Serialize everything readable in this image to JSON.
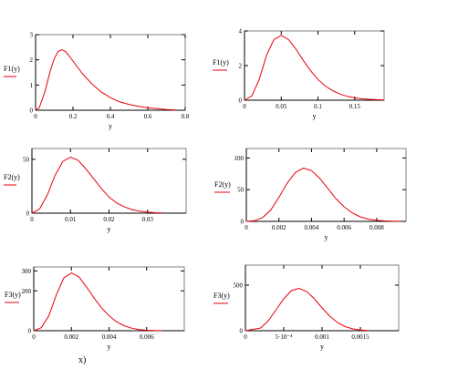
{
  "caption": "x)",
  "colors": {
    "curve": "#e8000b",
    "frame": "#808080"
  },
  "chart_data": [
    {
      "type": "line",
      "ylabel": "F1(y)",
      "xlabel": "y",
      "xlim": [
        0,
        0.8
      ],
      "ylim": [
        0,
        3
      ],
      "xticks": [
        "0",
        "0.2",
        "0.4",
        "0.6",
        "0.8"
      ],
      "xtickvals": [
        0,
        0.2,
        0.4,
        0.6,
        0.8
      ],
      "yticks": [
        "0",
        "1",
        "2",
        "3"
      ],
      "ytickvals": [
        0,
        1,
        2,
        3
      ],
      "series": [
        {
          "x": [
            0,
            0.02,
            0.05,
            0.08,
            0.1,
            0.12,
            0.14,
            0.16,
            0.18,
            0.2,
            0.25,
            0.3,
            0.35,
            0.4,
            0.45,
            0.5,
            0.55,
            0.6,
            0.65,
            0.7,
            0.75
          ],
          "y": [
            0,
            0.1,
            0.75,
            1.6,
            2.05,
            2.32,
            2.4,
            2.33,
            2.15,
            1.95,
            1.45,
            1.05,
            0.73,
            0.5,
            0.33,
            0.23,
            0.15,
            0.1,
            0.06,
            0.03,
            0.01
          ]
        }
      ]
    },
    {
      "type": "line",
      "ylabel": "F1(y)",
      "xlabel": "y",
      "xlim": [
        0,
        0.19
      ],
      "ylim": [
        0,
        4
      ],
      "xticks": [
        "0",
        "0.05",
        "0.1",
        "0.15"
      ],
      "xtickvals": [
        0,
        0.05,
        0.1,
        0.15
      ],
      "yticks": [
        "0",
        "2",
        "4"
      ],
      "ytickvals": [
        0,
        2,
        4
      ],
      "series": [
        {
          "x": [
            0,
            0.01,
            0.02,
            0.03,
            0.04,
            0.05,
            0.06,
            0.07,
            0.08,
            0.09,
            0.1,
            0.11,
            0.12,
            0.13,
            0.14,
            0.15,
            0.16,
            0.17,
            0.18,
            0.19
          ],
          "y": [
            0,
            0.25,
            1.2,
            2.6,
            3.5,
            3.75,
            3.5,
            2.95,
            2.3,
            1.7,
            1.2,
            0.82,
            0.55,
            0.35,
            0.22,
            0.14,
            0.08,
            0.05,
            0.03,
            0.02
          ]
        }
      ]
    },
    {
      "type": "line",
      "ylabel": "F2(y)",
      "xlabel": "y",
      "xlim": [
        0,
        0.04
      ],
      "ylim": [
        0,
        60
      ],
      "xticks": [
        "0",
        "0.01",
        "0.02",
        "0.03"
      ],
      "xtickvals": [
        0,
        0.01,
        0.02,
        0.03
      ],
      "yticks": [
        "0",
        "50"
      ],
      "ytickvals": [
        0,
        50
      ],
      "series": [
        {
          "x": [
            0,
            0.002,
            0.004,
            0.006,
            0.008,
            0.01,
            0.012,
            0.014,
            0.016,
            0.018,
            0.02,
            0.022,
            0.024,
            0.026,
            0.028,
            0.03,
            0.032,
            0.034
          ],
          "y": [
            0,
            4,
            17,
            35,
            48,
            52,
            49,
            41,
            32,
            23,
            15,
            9.5,
            5.8,
            3.3,
            1.8,
            0.9,
            0.4,
            0.2
          ]
        }
      ]
    },
    {
      "type": "line",
      "ylabel": "F2(y)",
      "xlabel": "y",
      "xlim": [
        0,
        0.0098
      ],
      "ylim": [
        0,
        115
      ],
      "xticks": [
        "0",
        "0.002",
        "0.004",
        "0.006",
        "0.008"
      ],
      "xtickvals": [
        0,
        0.002,
        0.004,
        0.006,
        0.008
      ],
      "yticks": [
        "0",
        "50",
        "100"
      ],
      "ytickvals": [
        0,
        50,
        100
      ],
      "series": [
        {
          "x": [
            0,
            0.0005,
            0.001,
            0.0015,
            0.002,
            0.0025,
            0.003,
            0.0035,
            0.004,
            0.0045,
            0.005,
            0.0055,
            0.006,
            0.0065,
            0.007,
            0.0075,
            0.008,
            0.0085,
            0.009,
            0.0095
          ],
          "y": [
            0,
            1,
            6,
            18,
            38,
            60,
            77,
            84,
            80,
            68,
            52,
            36,
            23,
            13.5,
            7,
            3.5,
            1.6,
            0.7,
            0.3,
            0.1
          ]
        }
      ]
    },
    {
      "type": "line",
      "ylabel": "F3(y)",
      "xlabel": "y",
      "xlim": [
        0,
        0.008
      ],
      "ylim": [
        0,
        320
      ],
      "xticks": [
        "0",
        "0.002",
        "0.004",
        "0.006"
      ],
      "xtickvals": [
        0,
        0.002,
        0.004,
        0.006
      ],
      "yticks": [
        "0",
        "200",
        "300"
      ],
      "ytickvals": [
        0,
        200,
        300
      ],
      "series": [
        {
          "x": [
            0,
            0.0004,
            0.0008,
            0.0012,
            0.0016,
            0.002,
            0.0024,
            0.0028,
            0.0032,
            0.0036,
            0.004,
            0.0044,
            0.0048,
            0.0052,
            0.0056,
            0.006,
            0.0064,
            0.0068
          ],
          "y": [
            0,
            15,
            75,
            180,
            265,
            290,
            270,
            220,
            165,
            115,
            75,
            45,
            25,
            13,
            6,
            2.5,
            1,
            0.3
          ]
        }
      ]
    },
    {
      "type": "line",
      "ylabel": "F3(y)",
      "xlabel": "y",
      "xlim": [
        0,
        0.002
      ],
      "ylim": [
        0,
        720
      ],
      "xticks": [
        "0",
        "5·10⁻⁴",
        "0.001",
        "0.0015"
      ],
      "xtickvals": [
        0,
        0.0005,
        0.001,
        0.0015
      ],
      "yticks": [
        "0",
        "500"
      ],
      "ytickvals": [
        0,
        500
      ],
      "series": [
        {
          "x": [
            0,
            0.0002,
            0.0003,
            0.0004,
            0.0005,
            0.0006,
            0.0007,
            0.0008,
            0.0009,
            0.001,
            0.0011,
            0.0012,
            0.0013,
            0.0014,
            0.0015,
            0.0016
          ],
          "y": [
            0,
            30,
            110,
            230,
            350,
            440,
            465,
            430,
            350,
            250,
            160,
            90,
            45,
            20,
            7,
            2
          ]
        }
      ]
    }
  ]
}
